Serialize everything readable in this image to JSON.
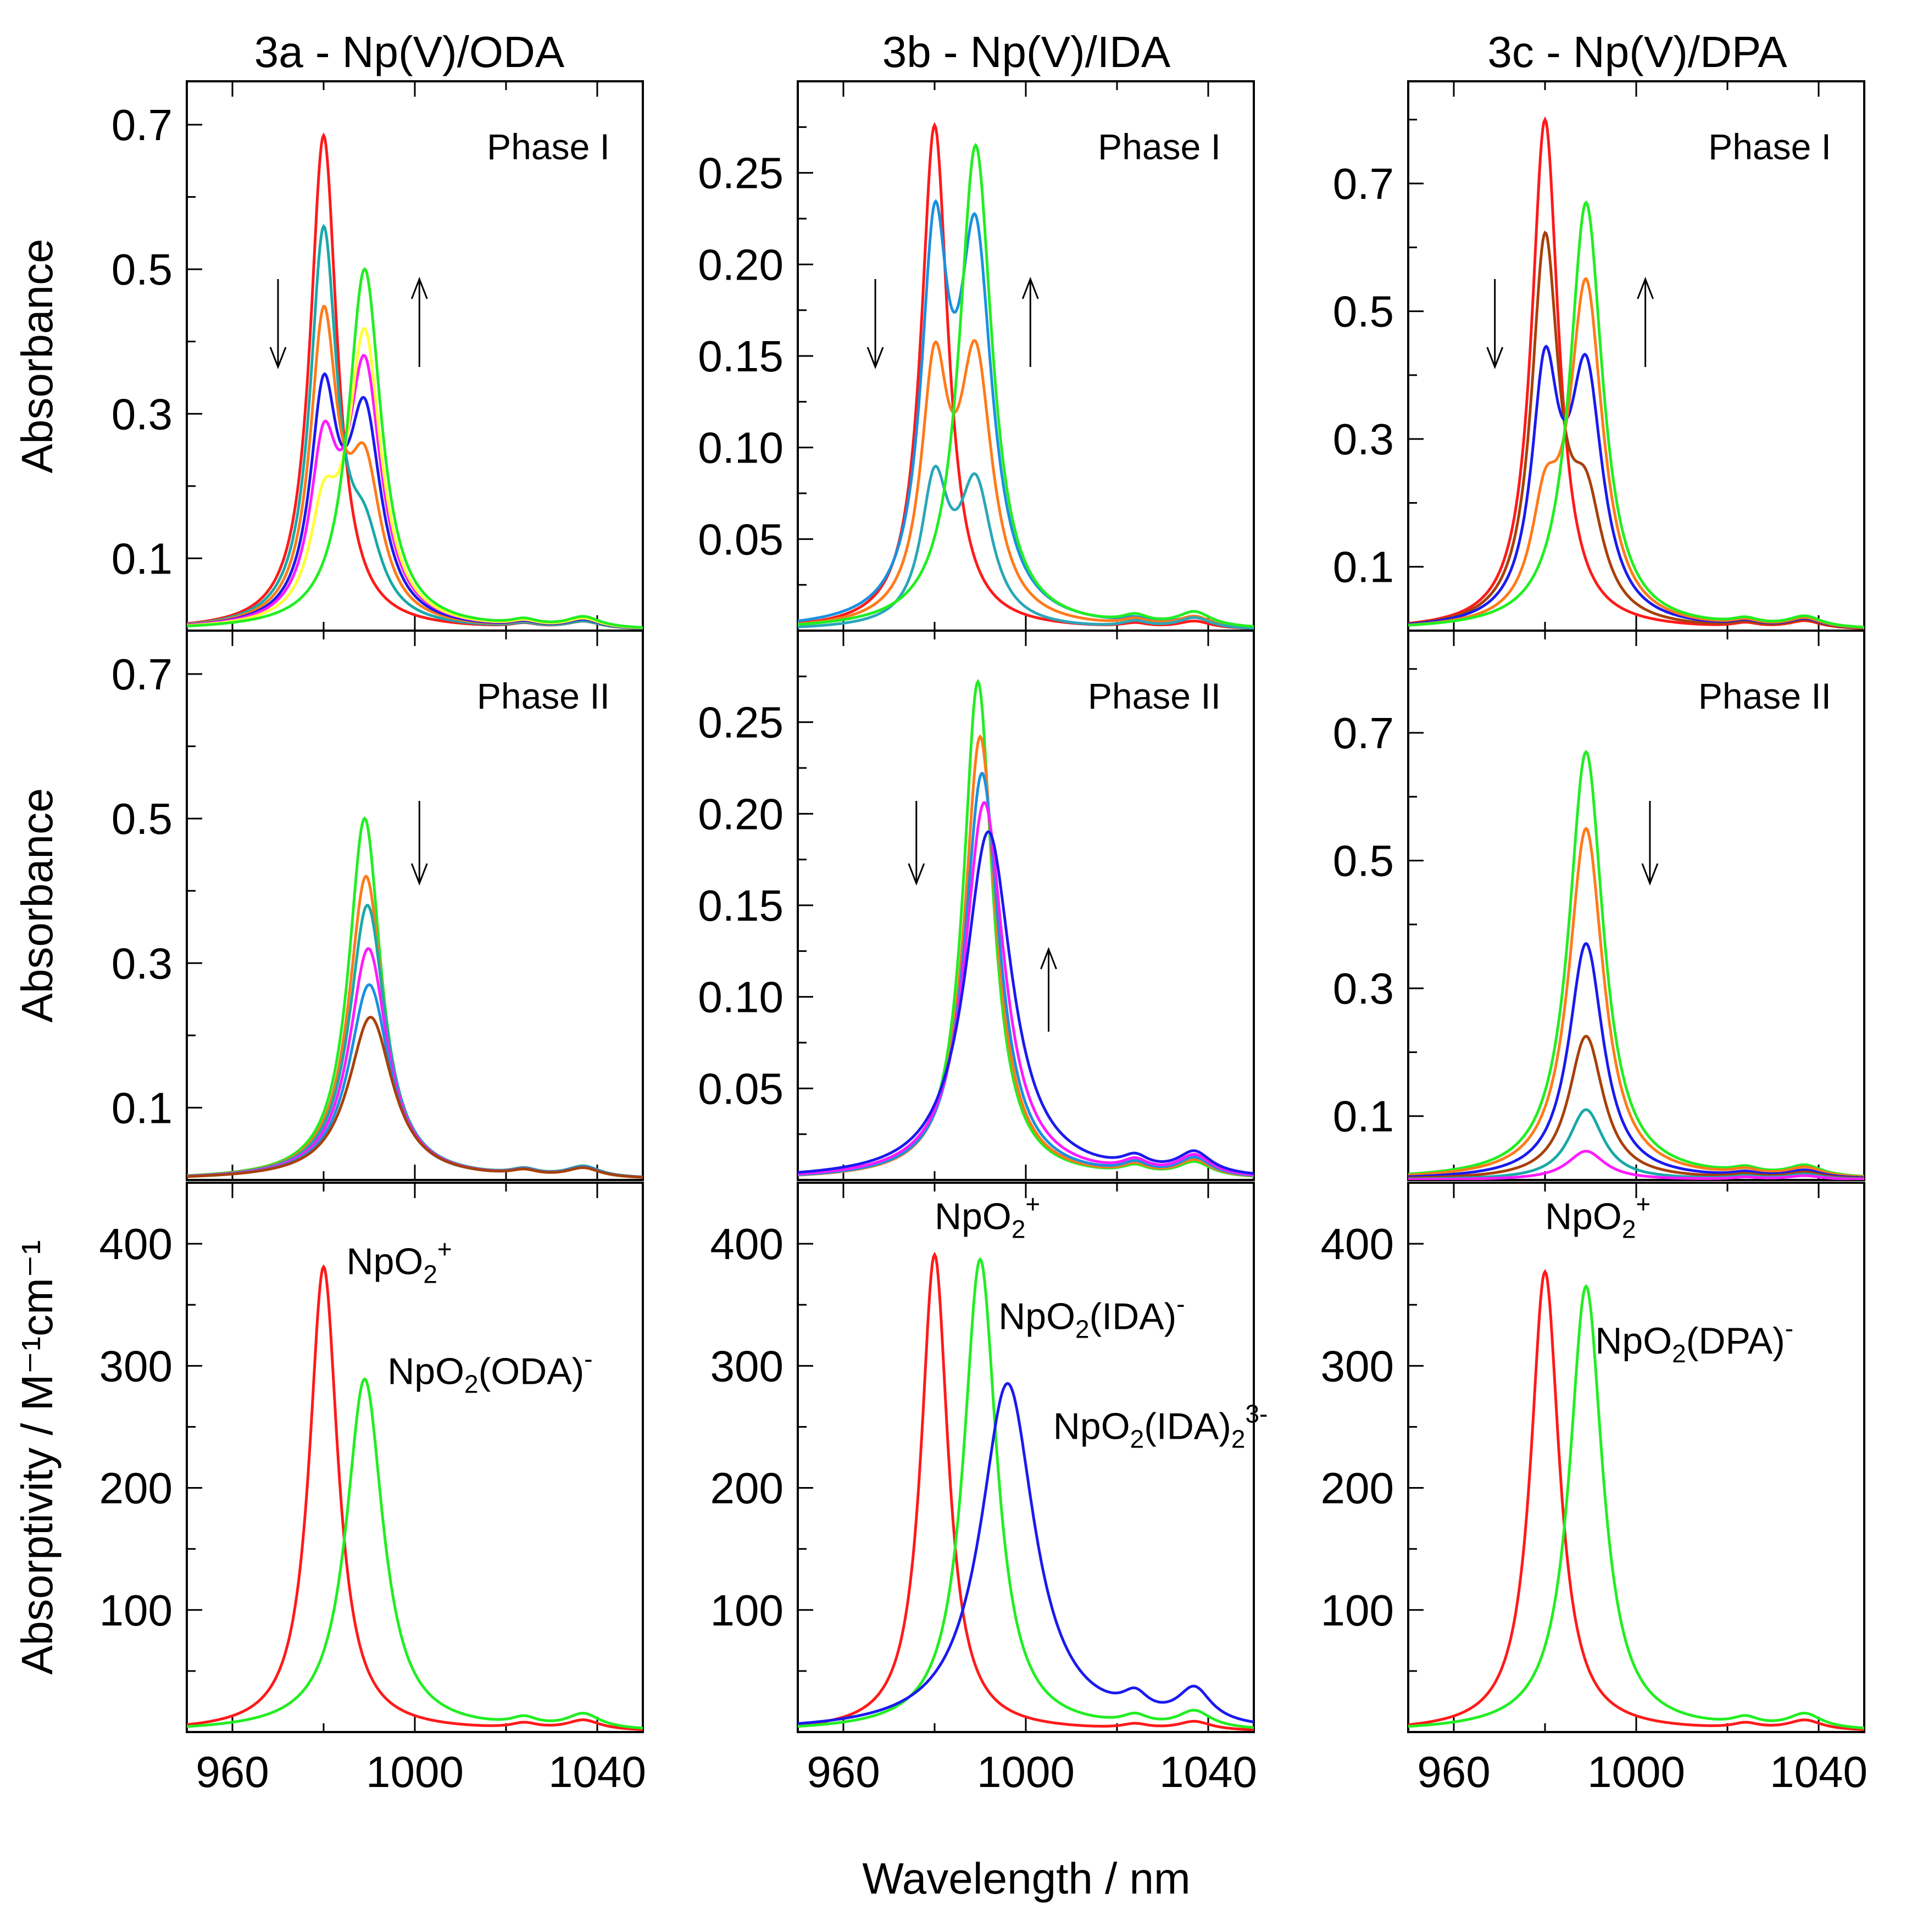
{
  "figure": {
    "x_axis_title": "Wavelength / nm",
    "columns": [
      {
        "key": "3a",
        "title": "3a - Np(V)/ODA"
      },
      {
        "key": "3b",
        "title": "3b - Np(V)/IDA"
      },
      {
        "key": "3c",
        "title": "3c - Np(V)/DPA"
      }
    ],
    "row_axis_titles": [
      "Absorbance",
      "Absorbance",
      "Absorptivity / M⁻¹cm⁻¹"
    ],
    "colors": {
      "red": "#ff1a1a",
      "green": "#22ee22",
      "blue": "#1a1aee",
      "cyan": "#1aa8a8",
      "skyblue": "#1a90e0",
      "orange": "#ff7a1a",
      "magenta": "#ff1aff",
      "yellow": "#ffff33",
      "brown": "#a8400a",
      "teal": "#2aa6b8"
    }
  },
  "chart_data": [
    {
      "id": "3a-phase1",
      "type": "line",
      "panel_label": "Phase I",
      "ylabel": "Absorbance",
      "xlim": [
        950,
        1050
      ],
      "ylim": [
        0,
        0.76
      ],
      "xticks": [
        960,
        1000,
        1040
      ],
      "yticks": [
        0.1,
        0.3,
        0.5,
        0.7
      ],
      "yticklabels": [
        "0.1",
        "0.3",
        "0.5",
        "0.7"
      ],
      "arrows": [
        {
          "x": 970,
          "dir": "down"
        },
        {
          "x": 1001,
          "dir": "up"
        }
      ],
      "series": [
        {
          "color": "red",
          "p1": 0.685,
          "p2": 0.0,
          "side": 0.01
        },
        {
          "color": "cyan",
          "p1": 0.54,
          "p2": 0.1,
          "side": 0.01
        },
        {
          "color": "orange",
          "p1": 0.41,
          "p2": 0.2,
          "side": 0.012
        },
        {
          "color": "blue",
          "p1": 0.3,
          "p2": 0.28,
          "side": 0.012
        },
        {
          "color": "magenta",
          "p1": 0.22,
          "p2": 0.35,
          "side": 0.013
        },
        {
          "color": "yellow",
          "p1": 0.13,
          "p2": 0.4,
          "side": 0.013
        },
        {
          "color": "green",
          "p1": 0.0,
          "p2": 0.5,
          "side": 0.015
        }
      ]
    },
    {
      "id": "3b-phase1",
      "type": "line",
      "panel_label": "Phase I",
      "ylabel": "",
      "xlim": [
        950,
        1050
      ],
      "ylim": [
        0,
        0.3
      ],
      "xticks": [
        960,
        1000,
        1040
      ],
      "yticks": [
        0.05,
        0.1,
        0.15,
        0.2,
        0.25
      ],
      "yticklabels": [
        "0.05",
        "0.10",
        "0.15",
        "0.20",
        "0.25"
      ],
      "arrows": [
        {
          "x": 967,
          "dir": "down"
        },
        {
          "x": 1001,
          "dir": "up"
        }
      ],
      "series": [
        {
          "color": "red",
          "p1": 0.276,
          "p2": 0.0,
          "side": 0.004
        },
        {
          "color": "skyblue",
          "p1": 0.195,
          "p2": 0.2,
          "side": 0.005
        },
        {
          "color": "orange",
          "p1": 0.13,
          "p2": 0.14,
          "side": 0.006
        },
        {
          "color": "teal",
          "p1": 0.075,
          "p2": 0.075,
          "side": 0.006
        },
        {
          "color": "green",
          "p1": 0.0,
          "p2": 0.265,
          "side": 0.008
        }
      ]
    },
    {
      "id": "3c-phase1",
      "type": "line",
      "panel_label": "Phase I",
      "ylabel": "",
      "xlim": [
        950,
        1050
      ],
      "ylim": [
        0,
        0.86
      ],
      "xticks": [
        960,
        1000,
        1040
      ],
      "yticks": [
        0.1,
        0.3,
        0.5,
        0.7
      ],
      "yticklabels": [
        "0.1",
        "0.3",
        "0.5",
        "0.7"
      ],
      "arrows": [
        {
          "x": 969,
          "dir": "down"
        },
        {
          "x": 1002,
          "dir": "up"
        }
      ],
      "series": [
        {
          "color": "red",
          "p1": 0.8,
          "p2": 0.0,
          "side": 0.012
        },
        {
          "color": "brown",
          "p1": 0.59,
          "p2": 0.17,
          "side": 0.013
        },
        {
          "color": "blue",
          "p1": 0.37,
          "p2": 0.38,
          "side": 0.014
        },
        {
          "color": "orange",
          "p1": 0.15,
          "p2": 0.53,
          "side": 0.015
        },
        {
          "color": "green",
          "p1": 0.0,
          "p2": 0.67,
          "side": 0.017
        }
      ]
    },
    {
      "id": "3a-phase2",
      "type": "line",
      "panel_label": "Phase II",
      "ylabel": "Absorbance",
      "xlim": [
        950,
        1050
      ],
      "ylim": [
        0,
        0.76
      ],
      "xticks": [
        960,
        1000,
        1040
      ],
      "yticks": [
        0.1,
        0.3,
        0.5,
        0.7
      ],
      "yticklabels": [
        "0.1",
        "0.3",
        "0.5",
        "0.7"
      ],
      "arrows": [
        {
          "x": 1001,
          "dir": "down"
        }
      ],
      "series": [
        {
          "color": "green",
          "peak": 0.5,
          "center": 989.0,
          "width": 4.3,
          "side": 0.015
        },
        {
          "color": "orange",
          "peak": 0.42,
          "center": 989.3,
          "width": 4.6,
          "side": 0.015
        },
        {
          "color": "cyan",
          "peak": 0.38,
          "center": 989.6,
          "width": 4.8,
          "side": 0.015
        },
        {
          "color": "magenta",
          "peak": 0.32,
          "center": 989.8,
          "width": 5.1,
          "side": 0.014
        },
        {
          "color": "skyblue",
          "peak": 0.27,
          "center": 990.0,
          "width": 5.4,
          "side": 0.014
        },
        {
          "color": "brown",
          "peak": 0.225,
          "center": 990.3,
          "width": 5.9,
          "side": 0.013
        }
      ]
    },
    {
      "id": "3b-phase2",
      "type": "line",
      "panel_label": "Phase II",
      "ylabel": "",
      "xlim": [
        950,
        1050
      ],
      "ylim": [
        0,
        0.3
      ],
      "xticks": [
        960,
        1000,
        1040
      ],
      "yticks": [
        0.05,
        0.1,
        0.15,
        0.2,
        0.25
      ],
      "yticklabels": [
        "0.05",
        "0.10",
        "0.15",
        "0.20",
        "0.25"
      ],
      "arrows": [
        {
          "x": 976,
          "dir": "down"
        },
        {
          "x": 1005,
          "dir": "up"
        }
      ],
      "series": [
        {
          "color": "green",
          "peak": 0.272,
          "center": 989.5,
          "width": 3.9,
          "side": 0.008
        },
        {
          "color": "orange",
          "peak": 0.242,
          "center": 990.0,
          "width": 4.2,
          "side": 0.009
        },
        {
          "color": "skyblue",
          "peak": 0.222,
          "center": 990.4,
          "width": 4.6,
          "side": 0.01
        },
        {
          "color": "magenta",
          "peak": 0.206,
          "center": 990.9,
          "width": 5.2,
          "side": 0.011
        },
        {
          "color": "blue",
          "peak": 0.19,
          "center": 991.8,
          "width": 6.2,
          "side": 0.012
        }
      ]
    },
    {
      "id": "3c-phase2",
      "type": "line",
      "panel_label": "Phase II",
      "ylabel": "",
      "xlim": [
        950,
        1050
      ],
      "ylim": [
        0,
        0.86
      ],
      "xticks": [
        960,
        1000,
        1040
      ],
      "yticks": [
        0.1,
        0.3,
        0.5,
        0.7
      ],
      "yticklabels": [
        "0.1",
        "0.3",
        "0.5",
        "0.7"
      ],
      "arrows": [
        {
          "x": 1003,
          "dir": "down"
        }
      ],
      "series": [
        {
          "color": "green",
          "peak": 0.67,
          "center": 989,
          "width": 4.6,
          "side": 0.017
        },
        {
          "color": "orange",
          "peak": 0.55,
          "center": 989,
          "width": 4.6,
          "side": 0.015
        },
        {
          "color": "blue",
          "peak": 0.37,
          "center": 989,
          "width": 4.6,
          "side": 0.012
        },
        {
          "color": "brown",
          "peak": 0.225,
          "center": 989,
          "width": 4.6,
          "side": 0.01
        },
        {
          "color": "cyan",
          "peak": 0.11,
          "center": 989,
          "width": 4.6,
          "side": 0.008
        },
        {
          "color": "magenta",
          "peak": 0.045,
          "center": 989,
          "width": 5.0,
          "side": 0.006
        }
      ]
    },
    {
      "id": "3a-species",
      "type": "line",
      "panel_label": "",
      "ylabel": "Absorptivity / M⁻¹cm⁻¹",
      "xlim": [
        950,
        1050
      ],
      "ylim": [
        0,
        450
      ],
      "xticks": [
        960,
        1000,
        1040
      ],
      "yticks": [
        100,
        200,
        300,
        400
      ],
      "yticklabels": [
        "100",
        "200",
        "300",
        "400"
      ],
      "arrows": [],
      "labels": [
        {
          "base": "NpO",
          "sub": "2",
          "tail": "",
          "sup": "+",
          "x": 985,
          "y": 375
        },
        {
          "base": "NpO",
          "sub": "2",
          "tail": "(ODA)",
          "sup": "-",
          "x": 994,
          "y": 285
        }
      ],
      "series": [
        {
          "color": "red",
          "peak": 381,
          "center": 980,
          "width": 3.8,
          "side": 8
        },
        {
          "color": "green",
          "peak": 289,
          "center": 989,
          "width": 4.9,
          "side": 12
        }
      ]
    },
    {
      "id": "3b-species",
      "type": "line",
      "panel_label": "",
      "ylabel": "",
      "xlim": [
        950,
        1050
      ],
      "ylim": [
        0,
        450
      ],
      "xticks": [
        960,
        1000,
        1040
      ],
      "yticks": [
        100,
        200,
        300,
        400
      ],
      "yticklabels": [
        "100",
        "200",
        "300",
        "400"
      ],
      "arrows": [],
      "labels": [
        {
          "base": "NpO",
          "sub": "2",
          "tail": "",
          "sup": "+",
          "x": 980,
          "y": 412
        },
        {
          "base": "NpO",
          "sub": "2",
          "tail": "(IDA)",
          "sup": "-",
          "x": 994,
          "y": 330
        },
        {
          "base": "NpO",
          "sub": "2",
          "tail": "(IDA)",
          "sub2": "2",
          "sup": "3-",
          "x": 1006,
          "y": 240
        }
      ],
      "series": [
        {
          "color": "red",
          "peak": 391,
          "center": 980,
          "width": 3.6,
          "side": 7
        },
        {
          "color": "green",
          "peak": 387,
          "center": 990,
          "width": 4.4,
          "side": 14
        },
        {
          "color": "blue",
          "peak": 285,
          "center": 996,
          "width": 7.2,
          "side": 28
        }
      ]
    },
    {
      "id": "3c-species",
      "type": "line",
      "panel_label": "",
      "ylabel": "",
      "xlim": [
        950,
        1050
      ],
      "ylim": [
        0,
        450
      ],
      "xticks": [
        960,
        1000,
        1040
      ],
      "yticks": [
        100,
        200,
        300,
        400
      ],
      "yticklabels": [
        "100",
        "200",
        "300",
        "400"
      ],
      "arrows": [],
      "labels": [
        {
          "base": "NpO",
          "sub": "2",
          "tail": "",
          "sup": "+",
          "x": 980,
          "y": 412
        },
        {
          "base": "NpO",
          "sub": "2",
          "tail": "(DPA)",
          "sup": "-",
          "x": 991,
          "y": 310
        }
      ],
      "series": [
        {
          "color": "red",
          "peak": 377,
          "center": 980,
          "width": 3.8,
          "side": 8
        },
        {
          "color": "green",
          "peak": 365,
          "center": 989,
          "width": 4.4,
          "side": 12
        }
      ]
    }
  ]
}
